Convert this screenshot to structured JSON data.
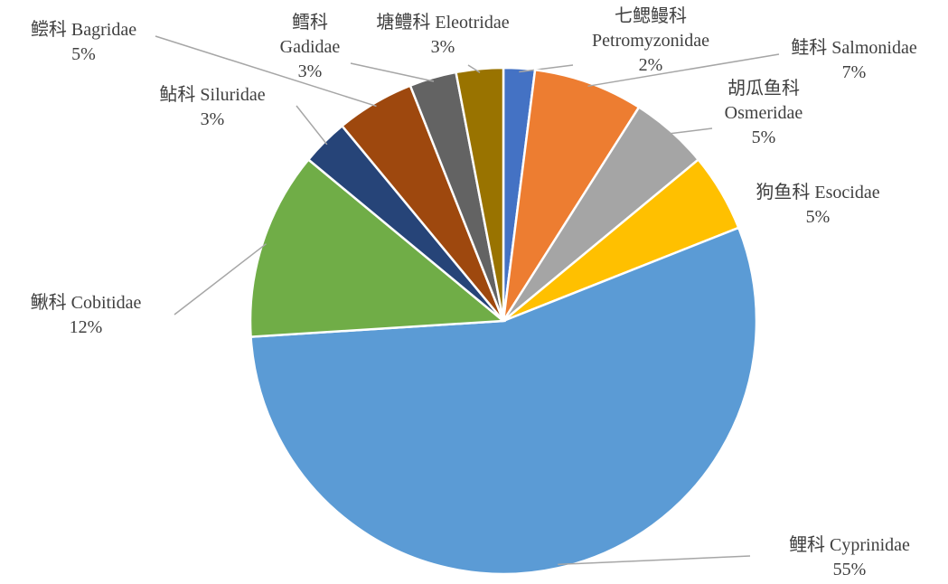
{
  "chart_data": {
    "type": "pie",
    "categories": [
      "七鳃鳗科 Petromyzonidae",
      "鲑科 Salmonidae",
      "胡瓜鱼科 Osmeridae",
      "狗鱼科 Esocidae",
      "鲤科 Cyprinidae",
      "鳅科 Cobitidae",
      "鲇科 Siluridae",
      "鲿科 Bagridae",
      "鳕科 Gadidae",
      "塘鳢科 Eleotridae"
    ],
    "values": [
      2,
      7,
      5,
      5,
      55,
      12,
      3,
      5,
      3,
      3
    ],
    "value_labels": [
      "2%",
      "7%",
      "5%",
      "5%",
      "55%",
      "12%",
      "3%",
      "5%",
      "3%",
      "3%"
    ],
    "colors": [
      "#4472c4",
      "#ed7d31",
      "#a5a5a5",
      "#ffc000",
      "#5b9bd5",
      "#70ad47",
      "#264478",
      "#9e480e",
      "#636363",
      "#997300"
    ]
  }
}
